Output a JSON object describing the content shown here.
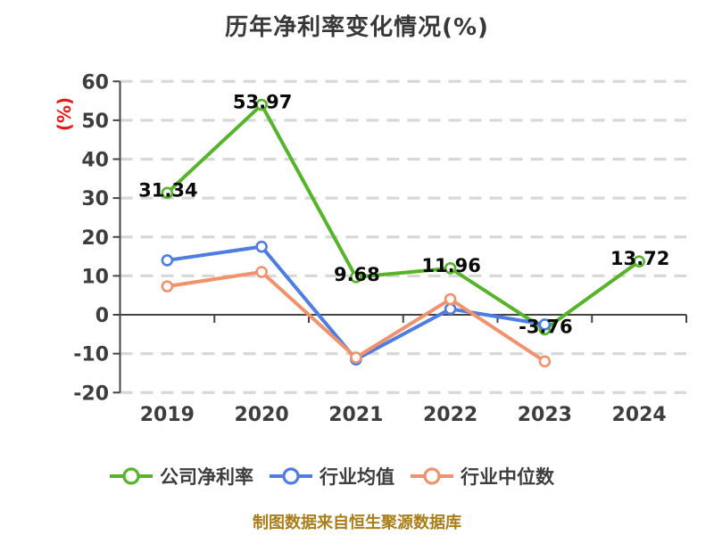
{
  "chart_data": {
    "type": "line",
    "title": "历年净利率变化情况(%)",
    "ylabel": "(%)",
    "footer": "制图数据来自恒生聚源数据库",
    "categories": [
      "2019",
      "2020",
      "2021",
      "2022",
      "2023",
      "2024"
    ],
    "yticks": [
      60,
      50,
      40,
      30,
      20,
      10,
      0,
      -10,
      -20
    ],
    "ylim": [
      -20,
      60
    ],
    "grid": "horizontal-dashed",
    "legend_position": "bottom",
    "series": [
      {
        "name": "公司净利率",
        "color": "#56b42a",
        "values": [
          31.34,
          53.97,
          9.68,
          11.96,
          -3.76,
          13.72
        ],
        "point_labels": [
          "31.34",
          "53.97",
          "9.68",
          "11.96",
          "-3.76",
          "13.72"
        ]
      },
      {
        "name": "行业均值",
        "color": "#4e7de2",
        "values": [
          14,
          17.5,
          -11.5,
          1.5,
          -2.5,
          null
        ],
        "point_labels": null
      },
      {
        "name": "行业中位数",
        "color": "#f2926c",
        "values": [
          7.3,
          11,
          -11,
          4,
          -12,
          null
        ],
        "point_labels": null
      }
    ],
    "colors": {
      "grid": "#d8d8d8",
      "axis": "#444444",
      "tick_text": "#3d3d3d",
      "point_label": "#0a0a0a",
      "ylabel": "#e71a1a",
      "footer": "#aa7d18",
      "marker_fill": "#ffffff",
      "title": "#383838"
    }
  }
}
